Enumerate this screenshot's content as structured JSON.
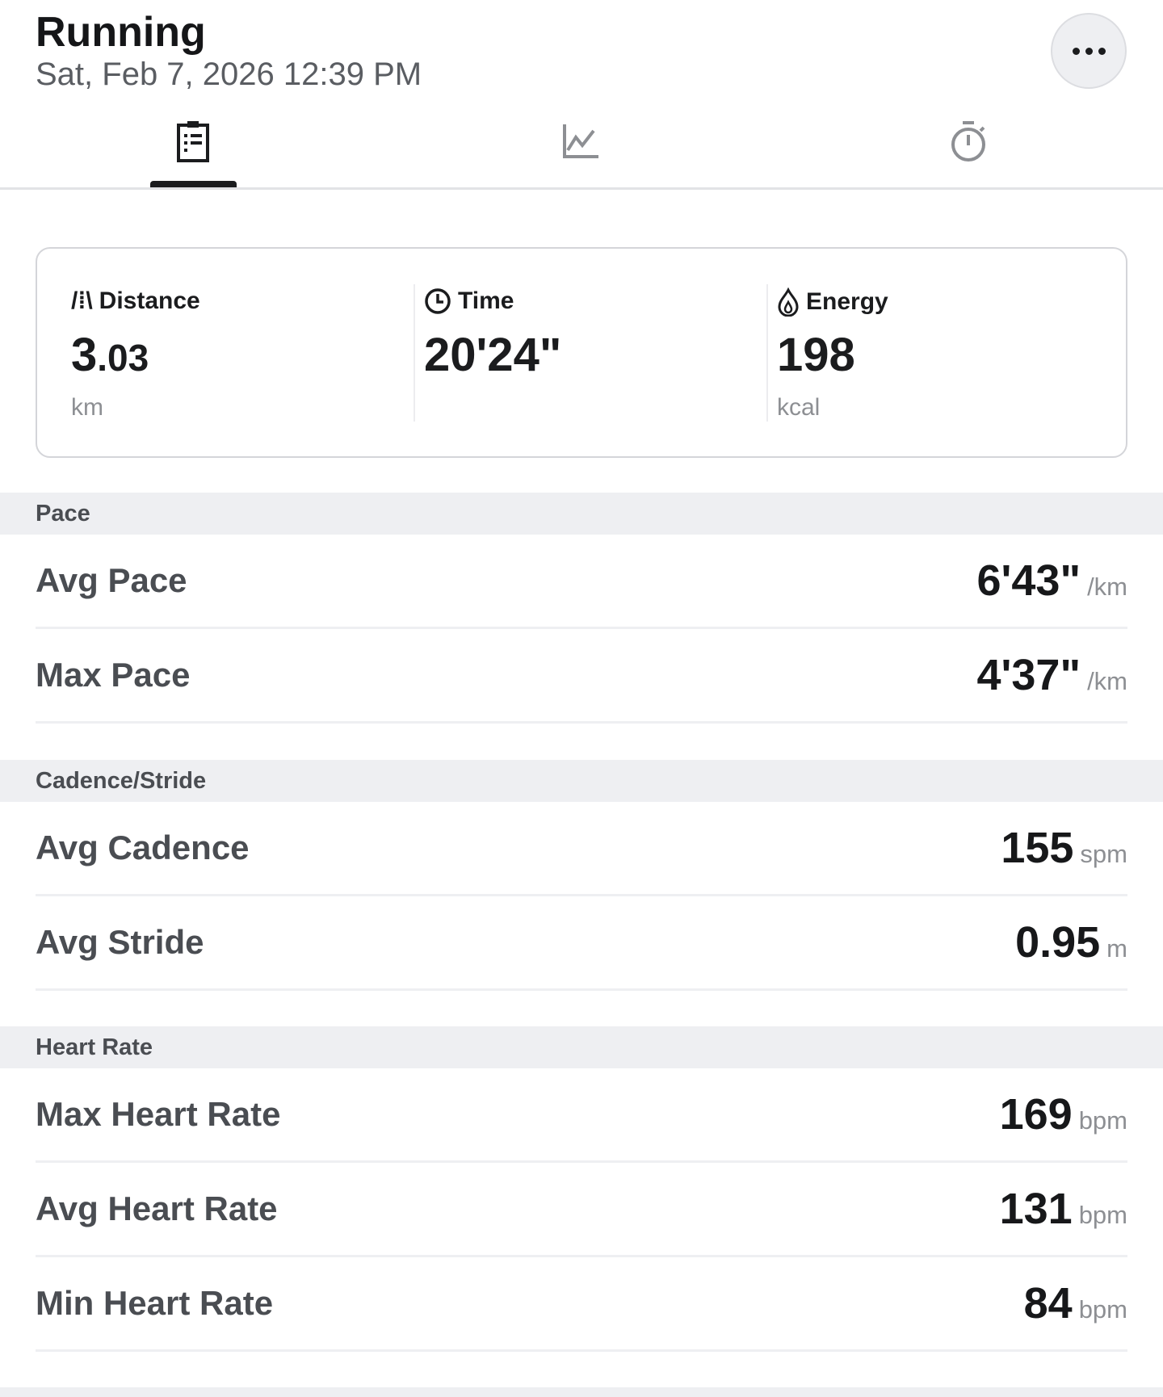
{
  "header": {
    "title": "Running",
    "datetime": "Sat, Feb 7, 2026 12:39 PM",
    "more_icon": "more-horizontal-icon"
  },
  "tabs": [
    {
      "icon": "clipboard-icon",
      "active": true
    },
    {
      "icon": "line-chart-icon",
      "active": false
    },
    {
      "icon": "stopwatch-icon",
      "active": false
    }
  ],
  "summary": {
    "distance": {
      "label": "Distance",
      "value_int": "3",
      "value_dec": ".03",
      "unit": "km",
      "icon": "road-icon"
    },
    "time": {
      "label": "Time",
      "value": "20'24\"",
      "icon": "clock-icon"
    },
    "energy": {
      "label": "Energy",
      "value": "198",
      "unit": "kcal",
      "icon": "flame-icon"
    }
  },
  "sections": [
    {
      "title": "Pace",
      "rows": [
        {
          "label": "Avg Pace",
          "value": "6'43\"",
          "unit": "/km"
        },
        {
          "label": "Max Pace",
          "value": "4'37\"",
          "unit": "/km"
        }
      ]
    },
    {
      "title": "Cadence/Stride",
      "rows": [
        {
          "label": "Avg Cadence",
          "value": "155",
          "unit": "spm"
        },
        {
          "label": "Avg Stride",
          "value": "0.95",
          "unit": "m"
        }
      ]
    },
    {
      "title": "Heart Rate",
      "rows": [
        {
          "label": "Max Heart Rate",
          "value": "169",
          "unit": "bpm"
        },
        {
          "label": "Avg Heart Rate",
          "value": "131",
          "unit": "bpm"
        },
        {
          "label": "Min Heart Rate",
          "value": "84",
          "unit": "bpm"
        }
      ]
    }
  ]
}
